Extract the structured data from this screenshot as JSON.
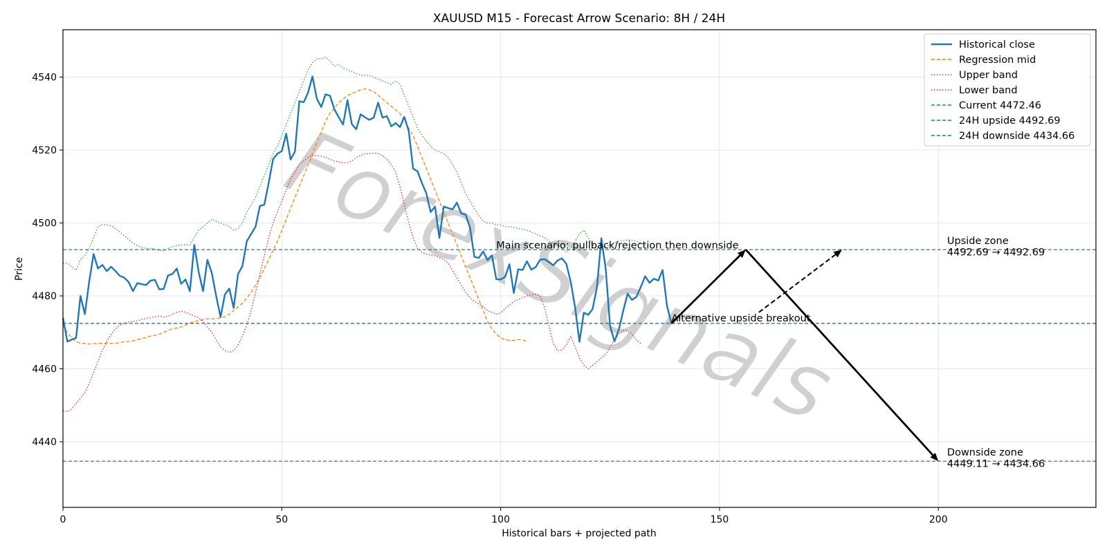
{
  "chart_data": {
    "type": "line",
    "title": "XAUUSD M15 - Forecast Arrow Scenario: 8H / 24H",
    "xlabel": "Historical bars + projected path",
    "ylabel": "Price",
    "xlim": [
      0,
      236
    ],
    "ylim": [
      4422,
      4553
    ],
    "xticks": [
      0,
      50,
      100,
      150,
      200
    ],
    "yticks": [
      4440,
      4460,
      4480,
      4500,
      4520,
      4540
    ],
    "grid": true,
    "legend_position": "top-right",
    "watermark": "ForexSignals",
    "colors": {
      "historical": "#1f77b4",
      "regression": "#ff7f0e",
      "upper": "#2ca02c",
      "lower": "#d62728",
      "hline": "#1f77b4",
      "arrow": "#000000"
    },
    "series": [
      {
        "name": "Historical close",
        "style": "solid",
        "values": [
          4474,
          4467.5,
          4468,
          4468.5,
          4480,
          4475,
          4484,
          4491.5,
          4487.5,
          4488.5,
          4486.8,
          4488,
          4486.8,
          4485.5,
          4485,
          4483.8,
          4481.3,
          4483.5,
          4483.2,
          4483,
          4484.2,
          4484.4,
          4481.8,
          4481.9,
          4485.6,
          4486,
          4487.5,
          4483.3,
          4484.5,
          4481.3,
          4494,
          4486.6,
          4481.3,
          4489.9,
          4486.3,
          4480,
          4474.2,
          4480.4,
          4482,
          4476.7,
          4486,
          4488.2,
          4495,
          4497,
          4499,
          4504.7,
          4505,
          4511,
          4517.5,
          4519,
          4519.7,
          4524.5,
          4517.4,
          4519.6,
          4533.4,
          4533.1,
          4535.8,
          4540.2,
          4534.1,
          4531.8,
          4535.3,
          4534.9,
          4531.2,
          4529,
          4527,
          4533.7,
          4527.1,
          4525.7,
          4529.8,
          4529,
          4528.3,
          4528.9,
          4533,
          4528.9,
          4529.3,
          4526.5,
          4527.4,
          4526.3,
          4529.1,
          4525.2,
          4514.9,
          4514.2,
          4511,
          4508.2,
          4503,
          4504.5,
          4495.9,
          4504.5,
          4504.1,
          4503.7,
          4505.6,
          4502.6,
          4502.3,
          4498.7,
          4490.7,
          4490.4,
          4492.2,
          4489.8,
          4491.1,
          4484.6,
          4484.5,
          4485.2,
          4488.7,
          4480.8,
          4487.3,
          4487.1,
          4489.5,
          4487.2,
          4487.9,
          4489.9,
          4490.1,
          4489.3,
          4488.4,
          4489.7,
          4490.3,
          4488.8,
          4483.9,
          4476.9,
          4467.4,
          4475.4,
          4474.8,
          4476.4,
          4482.4,
          4495.8,
          4487.4,
          4471.7,
          4467.5,
          4470.8,
          4475.9,
          4480.6,
          4478.9,
          4479.7,
          4482.4,
          4485.4,
          4483.6,
          4484.7,
          4484.2,
          4487.1,
          4477.3,
          4472.46
        ]
      },
      {
        "name": "Regression mid",
        "style": "dashed",
        "values": [
          4472,
          4470,
          4468.5,
          4467.5,
          4467,
          4467,
          4466.8,
          4466.9,
          4467,
          4467,
          4467,
          4467,
          4467,
          4467.2,
          4467.4,
          4467.5,
          4467.7,
          4468,
          4468.3,
          4468.6,
          4469,
          4469.2,
          4469.5,
          4470,
          4470.5,
          4471,
          4471.2,
          4471.5,
          4472,
          4472.5,
          4473,
          4473.2,
          4473.5,
          4473.7,
          4473.7,
          4473.8,
          4474,
          4474.3,
          4475,
          4476,
          4477,
          4478,
          4479.5,
          4481,
          4483,
          4485,
          4487.5,
          4490,
          4492.5,
          4495,
          4498,
          4501,
          4504,
          4507,
          4510,
          4513,
          4516,
          4519,
          4522,
          4525,
          4528,
          4530,
          4531.5,
          4533,
          4534,
          4535,
          4535.5,
          4536,
          4536.5,
          4536.8,
          4536.5,
          4536,
          4535,
          4534,
          4533,
          4532,
          4531,
          4530,
          4528,
          4526,
          4524,
          4521,
          4518,
          4515,
          4512,
          4509,
          4506,
          4503,
          4500,
          4497,
          4494,
          4491,
          4488,
          4485,
          4482,
          4479,
          4476,
          4473,
          4471,
          4469.5,
          4468.5,
          4468,
          4467.8,
          4467.8,
          4468,
          4468,
          4467.5
        ],
        "x_start": 0,
        "x_step": 1
      },
      {
        "name": "Upper band",
        "style": "dotted",
        "values": [
          4489,
          4489,
          4488,
          4487,
          4490,
          4491,
          4493,
          4496,
          4499,
          4499.5,
          4499.5,
          4499.2,
          4498.5,
          4497.5,
          4496.5,
          4495.5,
          4494.5,
          4493.8,
          4493.3,
          4493,
          4493,
          4492.8,
          4492.5,
          4492.3,
          4493,
          4493.5,
          4493.8,
          4494,
          4494,
          4494,
          4496,
          4498,
          4499,
          4500,
          4501,
          4500.5,
          4500,
          4499.5,
          4499,
          4498,
          4498.5,
          4500,
          4503,
          4505,
          4507,
          4510,
          4513,
          4516,
          4519,
          4521,
          4524,
          4527,
          4530,
          4533,
          4536,
          4539,
          4542,
          4544,
          4545,
          4545,
          4545.5,
          4544.5,
          4543,
          4543.5,
          4542.5,
          4542,
          4541.5,
          4541,
          4540.5,
          4540.5,
          4540.5,
          4540,
          4539.5,
          4539,
          4538.5,
          4538,
          4539,
          4538,
          4535,
          4532,
          4529,
          4526,
          4524,
          4522.5,
          4521,
          4520,
          4519.5,
          4519,
          4518,
          4516,
          4514,
          4511,
          4508,
          4506,
          4504,
          4502,
          4500.5,
          4500,
          4500,
          4499.5,
          4499.5,
          4499,
          4499,
          4498.8,
          4498.5,
          4498.3,
          4498,
          4497.5,
          4497,
          4496.5,
          4496,
          4495,
          4494.5,
          4494,
          4493,
          4492,
          4493,
          4495,
          4497,
          4498,
          4496,
          4494,
          4493,
          4493,
          4493.5,
          4494,
          4494.5,
          4495,
          4495.2,
          4495.3,
          4495.3,
          4495,
          4494.5,
          4494
        ],
        "x_start": 0,
        "x_step": 1
      },
      {
        "name": "Lower band",
        "style": "dotted",
        "values": [
          4448.5,
          4448.2,
          4449,
          4450.5,
          4452,
          4453.5,
          4456,
          4459,
          4462,
          4465,
          4467.5,
          4469.5,
          4471,
          4472,
          4472.5,
          4472.8,
          4473,
          4473.2,
          4473.5,
          4473.8,
          4474,
          4474.3,
          4474.5,
          4474.2,
          4474.4,
          4475,
          4475.5,
          4475.8,
          4475.5,
          4475,
          4474.5,
          4474,
          4473,
          4471.5,
          4470,
          4468,
          4466,
          4465,
          4464.5,
          4465,
          4466.5,
          4469,
          4472,
          4476,
          4481,
          4486,
          4491,
          4496,
          4500,
          4503,
          4506,
          4509,
          4512,
          4514,
          4516,
          4517,
          4518,
          4518.5,
          4518.5,
          4518.3,
          4518,
          4517.5,
          4517,
          4516.8,
          4516.5,
          4516.5,
          4517,
          4518,
          4518.5,
          4519,
          4519,
          4519.2,
          4519,
          4518.5,
          4517.5,
          4516,
          4514,
          4510,
          4505,
          4500,
          4496,
          4493,
          4492,
          4491.5,
          4491.2,
          4491,
          4490.5,
          4490,
          4489,
          4487,
          4485,
          4483,
          4481,
          4479.5,
          4478.5,
          4477.8,
          4477,
          4476,
          4475.5,
          4475,
          4475.3,
          4476.5,
          4477.5,
          4478.5,
          4479,
          4479.5,
          4480,
          4480.3,
          4480.5,
          4480,
          4477,
          4472,
          4467,
          4465,
          4465.2,
          4466.5,
          4469,
          4466,
          4463,
          4461,
          4460,
          4461,
          4462,
          4463,
          4464,
          4466,
          4468,
          4469.5,
          4470.5,
          4470.5,
          4469.5,
          4468,
          4467
        ],
        "x_start": 0,
        "x_step": 1
      }
    ],
    "hlines": [
      {
        "name": "Current 4472.46",
        "y": 4472.46
      },
      {
        "name": "24H upside 4492.69",
        "y": 4492.69
      },
      {
        "name": "24H downside 4434.66",
        "y": 4434.66
      }
    ],
    "arrows": [
      {
        "from": [
          139,
          4472.46
        ],
        "to": [
          156,
          4492.69
        ],
        "style": "solid"
      },
      {
        "from": [
          156,
          4492.69
        ],
        "to": [
          200,
          4434.66
        ],
        "style": "solid"
      },
      {
        "from": [
          159,
          4475.5
        ],
        "to": [
          178,
          4492.69
        ],
        "style": "dashed"
      }
    ],
    "annotations": [
      {
        "text": "Main scenario: pullback/rejection then downside",
        "x": 99,
        "y": 4493
      },
      {
        "text": "Alternative upside breakout",
        "x": 139,
        "y": 4473
      },
      {
        "text": "Upside zone",
        "x": 202,
        "y": 4494.2
      },
      {
        "text": "4492.69 → 4492.69",
        "x": 202,
        "y": 4491.1
      },
      {
        "text": "Downside zone",
        "x": 202,
        "y": 4436.2
      },
      {
        "text": "4449.11 → 4434.66",
        "x": 202,
        "y": 4433.1
      }
    ]
  }
}
